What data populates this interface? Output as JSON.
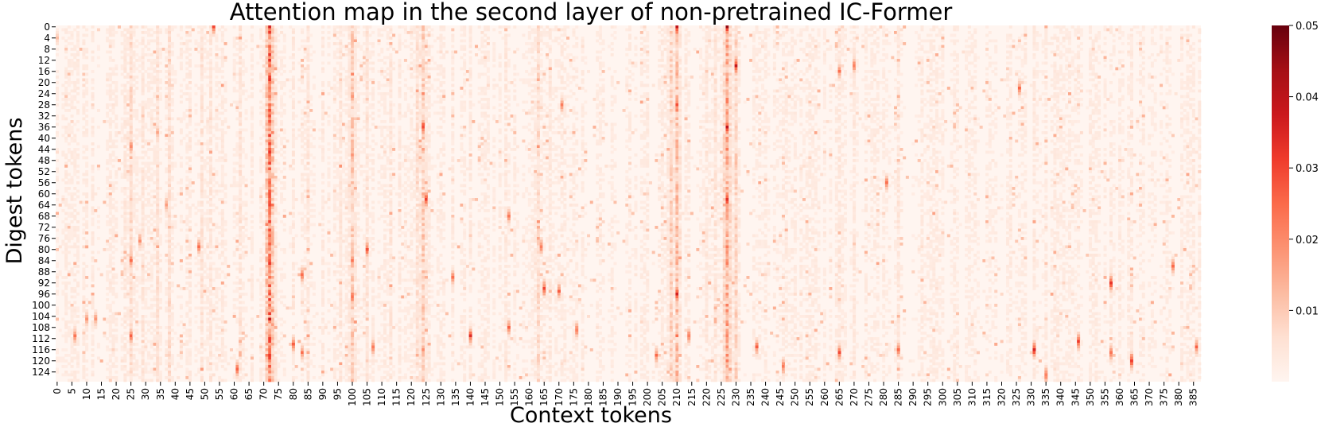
{
  "chart_data": {
    "type": "heatmap",
    "title": "Attention map in the second layer of non-pretrained IC-Former",
    "xlabel": "Context tokens",
    "ylabel": "Digest tokens",
    "x_count": 388,
    "y_count": 128,
    "x_tick_step": 5,
    "y_tick_step": 4,
    "x_tick_labels": [
      "0",
      "5",
      "10",
      "15",
      "20",
      "25",
      "30",
      "35",
      "40",
      "45",
      "50",
      "55",
      "60",
      "65",
      "70",
      "75",
      "80",
      "85",
      "90",
      "95",
      "100",
      "105",
      "110",
      "115",
      "120",
      "125",
      "130",
      "135",
      "140",
      "145",
      "150",
      "155",
      "160",
      "165",
      "170",
      "175",
      "180",
      "185",
      "190",
      "195",
      "200",
      "205",
      "210",
      "215",
      "220",
      "225",
      "230",
      "235",
      "240",
      "245",
      "250",
      "255",
      "260",
      "265",
      "270",
      "275",
      "280",
      "285",
      "290",
      "295",
      "300",
      "305",
      "310",
      "315",
      "320",
      "325",
      "330",
      "335",
      "340",
      "345",
      "350",
      "355",
      "360",
      "365",
      "370",
      "375",
      "380",
      "385"
    ],
    "y_tick_labels": [
      "0",
      "4",
      "8",
      "12",
      "16",
      "20",
      "24",
      "28",
      "32",
      "36",
      "40",
      "44",
      "48",
      "52",
      "56",
      "60",
      "64",
      "68",
      "72",
      "76",
      "80",
      "84",
      "88",
      "92",
      "96",
      "100",
      "104",
      "108",
      "112",
      "116",
      "120",
      "124"
    ],
    "value_range": [
      0,
      0.05
    ],
    "colorbar_ticks": [
      "0.01",
      "0.02",
      "0.03",
      "0.04",
      "0.05"
    ],
    "colorbar_tick_values": [
      0.01,
      0.02,
      0.03,
      0.04,
      0.05
    ],
    "colormap": "Reds",
    "colormap_stops": [
      "#fff5f0",
      "#fee0d2",
      "#fcbba1",
      "#fc9272",
      "#fb6a4a",
      "#ef3b2c",
      "#cb181d",
      "#a50f15",
      "#67000d"
    ],
    "column_intensity": [
      {
        "x": 0,
        "value": 0.003
      },
      {
        "x": 5,
        "value": 0.005
      },
      {
        "x": 10,
        "value": 0.005
      },
      {
        "x": 12,
        "value": 0.006
      },
      {
        "x": 18,
        "value": 0.005
      },
      {
        "x": 23,
        "value": 0.007
      },
      {
        "x": 25,
        "value": 0.012
      },
      {
        "x": 29,
        "value": 0.008
      },
      {
        "x": 34,
        "value": 0.01
      },
      {
        "x": 38,
        "value": 0.011
      },
      {
        "x": 45,
        "value": 0.006
      },
      {
        "x": 49,
        "value": 0.009
      },
      {
        "x": 52,
        "value": 0.008
      },
      {
        "x": 56,
        "value": 0.006
      },
      {
        "x": 62,
        "value": 0.009
      },
      {
        "x": 66,
        "value": 0.006
      },
      {
        "x": 72,
        "value": 0.04
      },
      {
        "x": 74,
        "value": 0.008
      },
      {
        "x": 80,
        "value": 0.007
      },
      {
        "x": 85,
        "value": 0.008
      },
      {
        "x": 90,
        "value": 0.006
      },
      {
        "x": 96,
        "value": 0.008
      },
      {
        "x": 100,
        "value": 0.017
      },
      {
        "x": 105,
        "value": 0.009
      },
      {
        "x": 113,
        "value": 0.008
      },
      {
        "x": 116,
        "value": 0.006
      },
      {
        "x": 122,
        "value": 0.01
      },
      {
        "x": 124,
        "value": 0.017
      },
      {
        "x": 126,
        "value": 0.006
      },
      {
        "x": 134,
        "value": 0.006
      },
      {
        "x": 140,
        "value": 0.006
      },
      {
        "x": 152,
        "value": 0.007
      },
      {
        "x": 163,
        "value": 0.012
      },
      {
        "x": 167,
        "value": 0.007
      },
      {
        "x": 171,
        "value": 0.006
      },
      {
        "x": 178,
        "value": 0.004
      },
      {
        "x": 194,
        "value": 0.005
      },
      {
        "x": 199,
        "value": 0.005
      },
      {
        "x": 205,
        "value": 0.006
      },
      {
        "x": 208,
        "value": 0.015
      },
      {
        "x": 210,
        "value": 0.02
      },
      {
        "x": 214,
        "value": 0.005
      },
      {
        "x": 220,
        "value": 0.007
      },
      {
        "x": 223,
        "value": 0.009
      },
      {
        "x": 227,
        "value": 0.028
      },
      {
        "x": 230,
        "value": 0.014
      },
      {
        "x": 236,
        "value": 0.005
      },
      {
        "x": 249,
        "value": 0.005
      },
      {
        "x": 257,
        "value": 0.005
      },
      {
        "x": 265,
        "value": 0.007
      },
      {
        "x": 270,
        "value": 0.007
      },
      {
        "x": 274,
        "value": 0.005
      },
      {
        "x": 285,
        "value": 0.008
      },
      {
        "x": 296,
        "value": 0.003
      },
      {
        "x": 318,
        "value": 0.003
      },
      {
        "x": 326,
        "value": 0.004
      },
      {
        "x": 331,
        "value": 0.006
      },
      {
        "x": 346,
        "value": 0.005
      },
      {
        "x": 357,
        "value": 0.005
      },
      {
        "x": 364,
        "value": 0.006
      },
      {
        "x": 376,
        "value": 0.005
      },
      {
        "x": 383,
        "value": 0.004
      }
    ],
    "hotspots": [
      {
        "x": 0,
        "y": 4,
        "value": 0.012
      },
      {
        "x": 6,
        "y": 111,
        "value": 0.025
      },
      {
        "x": 10,
        "y": 105,
        "value": 0.02
      },
      {
        "x": 13,
        "y": 105,
        "value": 0.02
      },
      {
        "x": 25,
        "y": 43,
        "value": 0.022
      },
      {
        "x": 25,
        "y": 84,
        "value": 0.025
      },
      {
        "x": 25,
        "y": 111,
        "value": 0.028
      },
      {
        "x": 28,
        "y": 77,
        "value": 0.02
      },
      {
        "x": 34,
        "y": 38,
        "value": 0.016
      },
      {
        "x": 37,
        "y": 64,
        "value": 0.02
      },
      {
        "x": 48,
        "y": 79,
        "value": 0.026
      },
      {
        "x": 53,
        "y": 0,
        "value": 0.03
      },
      {
        "x": 61,
        "y": 123,
        "value": 0.03
      },
      {
        "x": 72,
        "y": 0,
        "value": 0.038
      },
      {
        "x": 72,
        "y": 12,
        "value": 0.033
      },
      {
        "x": 72,
        "y": 30,
        "value": 0.032
      },
      {
        "x": 72,
        "y": 45,
        "value": 0.04
      },
      {
        "x": 72,
        "y": 60,
        "value": 0.034
      },
      {
        "x": 72,
        "y": 75,
        "value": 0.03
      },
      {
        "x": 72,
        "y": 85,
        "value": 0.034
      },
      {
        "x": 80,
        "y": 114,
        "value": 0.026
      },
      {
        "x": 83,
        "y": 89,
        "value": 0.025
      },
      {
        "x": 83,
        "y": 117,
        "value": 0.024
      },
      {
        "x": 100,
        "y": 25,
        "value": 0.021
      },
      {
        "x": 100,
        "y": 84,
        "value": 0.024
      },
      {
        "x": 100,
        "y": 97,
        "value": 0.028
      },
      {
        "x": 105,
        "y": 80,
        "value": 0.03
      },
      {
        "x": 107,
        "y": 115,
        "value": 0.026
      },
      {
        "x": 124,
        "y": 36,
        "value": 0.036
      },
      {
        "x": 125,
        "y": 62,
        "value": 0.032
      },
      {
        "x": 134,
        "y": 90,
        "value": 0.024
      },
      {
        "x": 140,
        "y": 111,
        "value": 0.033
      },
      {
        "x": 153,
        "y": 68,
        "value": 0.024
      },
      {
        "x": 153,
        "y": 108,
        "value": 0.026
      },
      {
        "x": 164,
        "y": 79,
        "value": 0.026
      },
      {
        "x": 165,
        "y": 94,
        "value": 0.032
      },
      {
        "x": 170,
        "y": 95,
        "value": 0.027
      },
      {
        "x": 171,
        "y": 28,
        "value": 0.022
      },
      {
        "x": 176,
        "y": 109,
        "value": 0.026
      },
      {
        "x": 203,
        "y": 118,
        "value": 0.026
      },
      {
        "x": 210,
        "y": 0,
        "value": 0.045
      },
      {
        "x": 210,
        "y": 28,
        "value": 0.03
      },
      {
        "x": 210,
        "y": 96,
        "value": 0.038
      },
      {
        "x": 214,
        "y": 111,
        "value": 0.026
      },
      {
        "x": 227,
        "y": 0,
        "value": 0.05
      },
      {
        "x": 227,
        "y": 36,
        "value": 0.04
      },
      {
        "x": 227,
        "y": 62,
        "value": 0.04
      },
      {
        "x": 230,
        "y": 14,
        "value": 0.04
      },
      {
        "x": 237,
        "y": 115,
        "value": 0.026
      },
      {
        "x": 246,
        "y": 122,
        "value": 0.026
      },
      {
        "x": 265,
        "y": 16,
        "value": 0.024
      },
      {
        "x": 265,
        "y": 117,
        "value": 0.03
      },
      {
        "x": 270,
        "y": 14,
        "value": 0.026
      },
      {
        "x": 281,
        "y": 56,
        "value": 0.024
      },
      {
        "x": 285,
        "y": 116,
        "value": 0.026
      },
      {
        "x": 326,
        "y": 22,
        "value": 0.025
      },
      {
        "x": 331,
        "y": 116,
        "value": 0.038
      },
      {
        "x": 335,
        "y": 125,
        "value": 0.026
      },
      {
        "x": 346,
        "y": 113,
        "value": 0.033
      },
      {
        "x": 357,
        "y": 92,
        "value": 0.035
      },
      {
        "x": 357,
        "y": 117,
        "value": 0.028
      },
      {
        "x": 364,
        "y": 120,
        "value": 0.036
      },
      {
        "x": 378,
        "y": 86,
        "value": 0.028
      },
      {
        "x": 386,
        "y": 115,
        "value": 0.026
      }
    ]
  }
}
